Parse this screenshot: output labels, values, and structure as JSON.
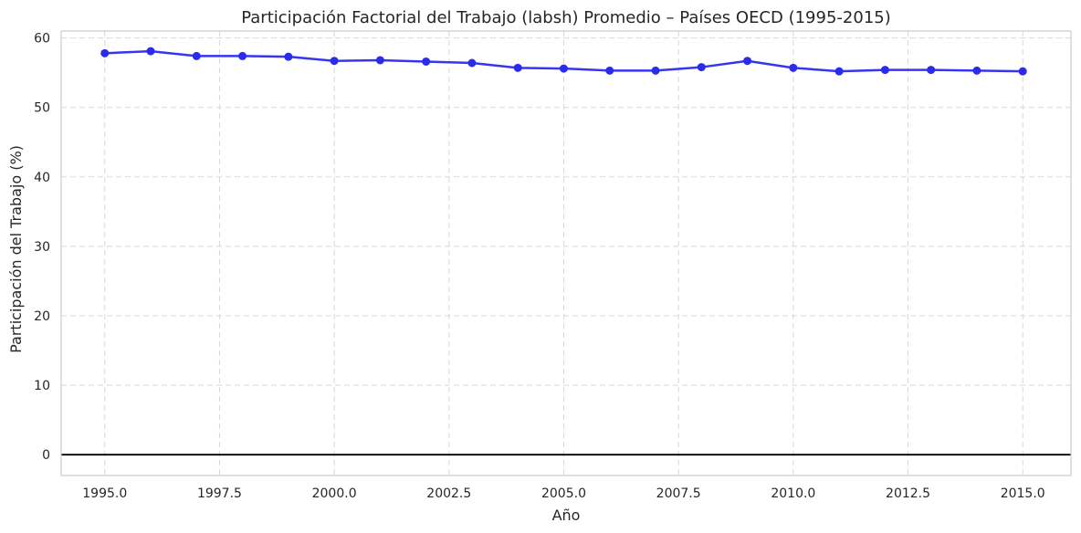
{
  "chart_data": {
    "type": "line",
    "title": "Participación Factorial del Trabajo (labsh) Promedio – Países OECD (1995-2015)",
    "xlabel": "Año",
    "ylabel": "Participación del Trabajo (%)",
    "xlim": [
      1994.05,
      2016.05
    ],
    "ylim": [
      -3,
      61
    ],
    "x_ticks": [
      1995.0,
      1997.5,
      2000.0,
      2002.5,
      2005.0,
      2007.5,
      2010.0,
      2012.5,
      2015.0
    ],
    "x_tick_labels": [
      "1995.0",
      "1997.5",
      "2000.0",
      "2002.5",
      "2005.0",
      "2007.5",
      "2010.0",
      "2012.5",
      "2015.0"
    ],
    "y_ticks": [
      0,
      10,
      20,
      30,
      40,
      50,
      60
    ],
    "y_tick_labels": [
      "0",
      "10",
      "20",
      "30",
      "40",
      "50",
      "60"
    ],
    "grid": true,
    "reference_line_y": 0,
    "colors": {
      "series": "#2b2bee",
      "reference_line": "#000000",
      "grid": "#cfcfcf"
    },
    "series": [
      {
        "x": [
          1995,
          1996,
          1997,
          1998,
          1999,
          2000,
          2001,
          2002,
          2003,
          2004,
          2005,
          2006,
          2007,
          2008,
          2009,
          2010,
          2011,
          2012,
          2013,
          2014,
          2015
        ],
        "values": [
          57.8,
          58.1,
          57.4,
          57.4,
          57.3,
          56.7,
          56.8,
          56.6,
          56.4,
          55.7,
          55.6,
          55.3,
          55.3,
          55.8,
          56.7,
          55.7,
          55.2,
          55.4,
          55.4,
          55.3,
          55.2
        ]
      }
    ]
  }
}
